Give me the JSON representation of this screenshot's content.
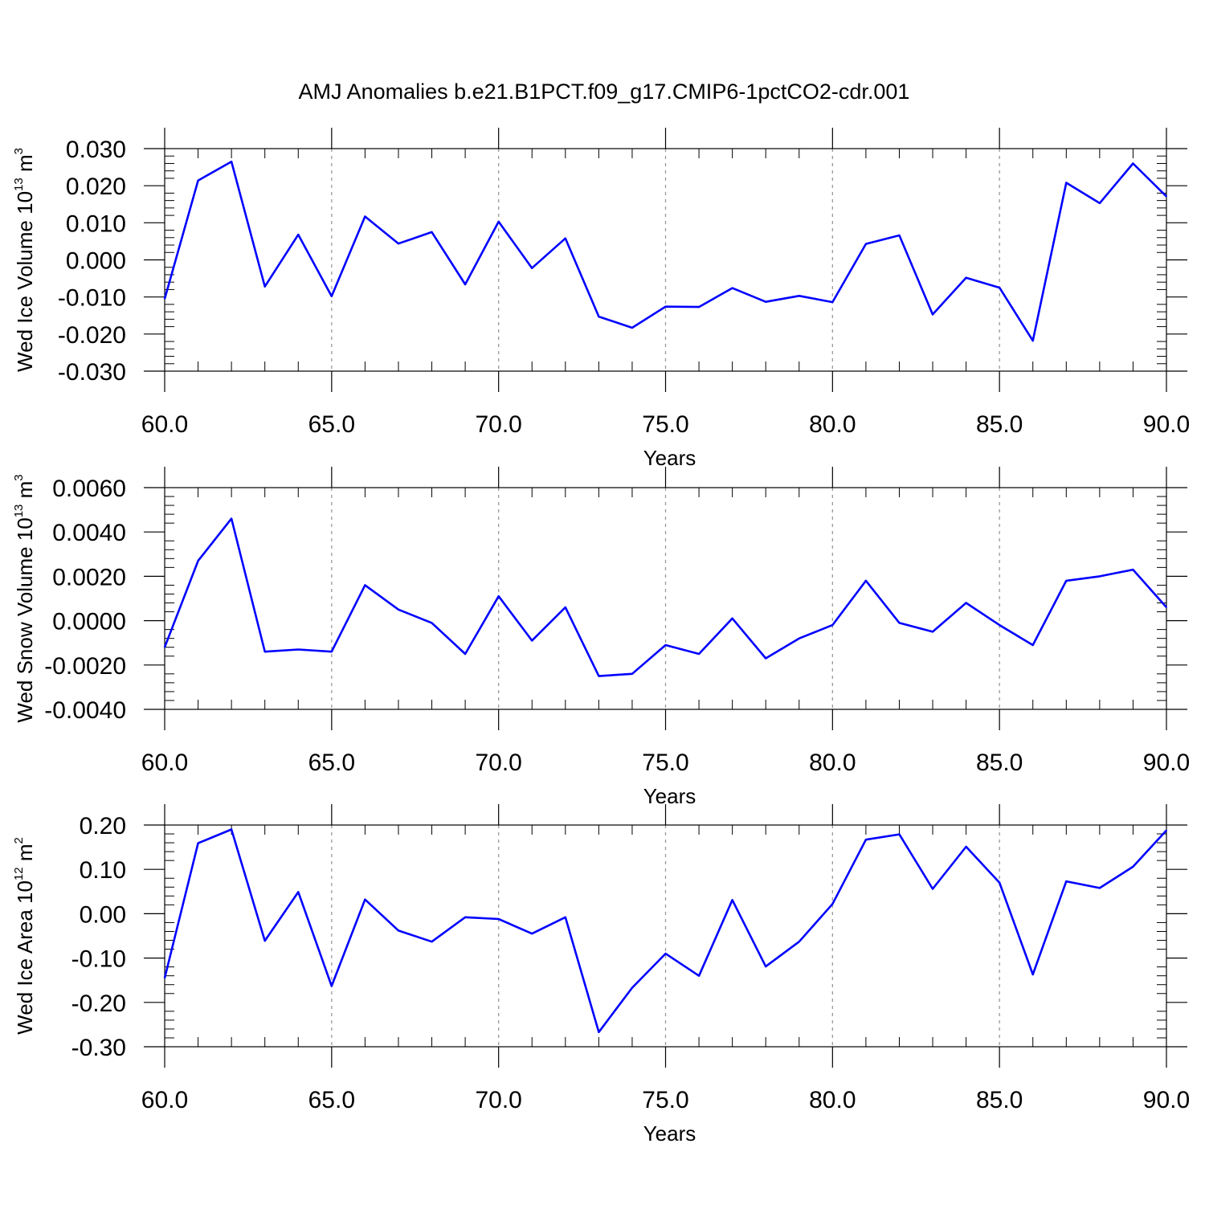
{
  "title": "AMJ Anomalies b.e21.B1PCT.f09_g17.CMIP6-1pctCO2-cdr.001",
  "colors": {
    "line": "#0000ff",
    "axis": "#000000",
    "grid": "#999999"
  },
  "chart_data": [
    {
      "type": "line",
      "ylabel": {
        "prefix": "Wed Ice Volume 10",
        "exp1": "13",
        "mid": " m",
        "exp2": "3"
      },
      "xlabel": "Years",
      "xlim": [
        60,
        90
      ],
      "ylim": [
        -0.03,
        0.03
      ],
      "xticks": [
        "60.0",
        "65.0",
        "70.0",
        "75.0",
        "80.0",
        "85.0",
        "90.0"
      ],
      "yticks": [
        "0.030",
        "0.020",
        "0.010",
        "0.000",
        "-0.010",
        "-0.020",
        "-0.030"
      ],
      "grid": "x dashed",
      "x": [
        60,
        61,
        62,
        63,
        64,
        65,
        66,
        67,
        68,
        69,
        70,
        71,
        72,
        73,
        74,
        75,
        76,
        77,
        78,
        79,
        80,
        81,
        82,
        83,
        84,
        85,
        86,
        87,
        88,
        89,
        90
      ],
      "series": [
        {
          "values": [
            -0.0105,
            0.0214,
            0.0265,
            -0.0072,
            0.0068,
            -0.0098,
            0.0117,
            0.0044,
            0.0075,
            -0.0066,
            0.0103,
            -0.0022,
            0.0058,
            -0.0153,
            -0.0183,
            -0.0126,
            -0.0127,
            -0.0076,
            -0.0113,
            -0.0097,
            -0.0114,
            0.0043,
            0.0066,
            -0.0147,
            -0.0048,
            -0.0075,
            -0.0218,
            0.0208,
            0.0153,
            0.026,
            0.0171
          ]
        }
      ]
    },
    {
      "type": "line",
      "ylabel": {
        "prefix": "Wed Snow Volume 10",
        "exp1": "13",
        "mid": " m",
        "exp2": "3"
      },
      "xlabel": "Years",
      "xlim": [
        60,
        90
      ],
      "ylim": [
        -0.004,
        0.006
      ],
      "xticks": [
        "60.0",
        "65.0",
        "70.0",
        "75.0",
        "80.0",
        "85.0",
        "90.0"
      ],
      "yticks": [
        "0.0060",
        "0.0040",
        "0.0020",
        "0.0000",
        "-0.0020",
        "-0.0040"
      ],
      "grid": "x dashed",
      "x": [
        60,
        61,
        62,
        63,
        64,
        65,
        66,
        67,
        68,
        69,
        70,
        71,
        72,
        73,
        74,
        75,
        76,
        77,
        78,
        79,
        80,
        81,
        82,
        83,
        84,
        85,
        86,
        87,
        88,
        89,
        90
      ],
      "series": [
        {
          "values": [
            -0.0012,
            0.0027,
            0.0046,
            -0.0014,
            -0.0013,
            -0.0014,
            0.0016,
            0.0005,
            -0.0001,
            -0.0015,
            0.0011,
            -0.0009,
            0.0006,
            -0.0025,
            -0.0024,
            -0.0011,
            -0.0015,
            0.0001,
            -0.0017,
            -0.0008,
            -0.0002,
            0.0018,
            -0.0001,
            -0.0005,
            0.0008,
            -0.0002,
            -0.0011,
            0.0018,
            0.002,
            0.0023,
            0.0006
          ]
        }
      ]
    },
    {
      "type": "line",
      "ylabel": {
        "prefix": "Wed Ice Area 10",
        "exp1": "12",
        "mid": " m",
        "exp2": "2"
      },
      "xlabel": "Years",
      "xlim": [
        60,
        90
      ],
      "ylim": [
        -0.3,
        0.2
      ],
      "xticks": [
        "60.0",
        "65.0",
        "70.0",
        "75.0",
        "80.0",
        "85.0",
        "90.0"
      ],
      "yticks": [
        "0.20",
        "0.10",
        "0.00",
        "-0.10",
        "-0.20",
        "-0.30"
      ],
      "grid": "x dashed",
      "x": [
        60,
        61,
        62,
        63,
        64,
        65,
        66,
        67,
        68,
        69,
        70,
        71,
        72,
        73,
        74,
        75,
        76,
        77,
        78,
        79,
        80,
        81,
        82,
        83,
        84,
        85,
        86,
        87,
        88,
        89,
        90
      ],
      "series": [
        {
          "values": [
            -0.145,
            0.159,
            0.19,
            -0.061,
            0.049,
            -0.163,
            0.032,
            -0.038,
            -0.063,
            -0.008,
            -0.012,
            -0.045,
            -0.008,
            -0.267,
            -0.167,
            -0.09,
            -0.14,
            0.031,
            -0.119,
            -0.063,
            0.022,
            0.167,
            0.179,
            0.056,
            0.151,
            0.07,
            -0.137,
            0.073,
            0.058,
            0.106,
            0.188
          ]
        }
      ]
    }
  ]
}
